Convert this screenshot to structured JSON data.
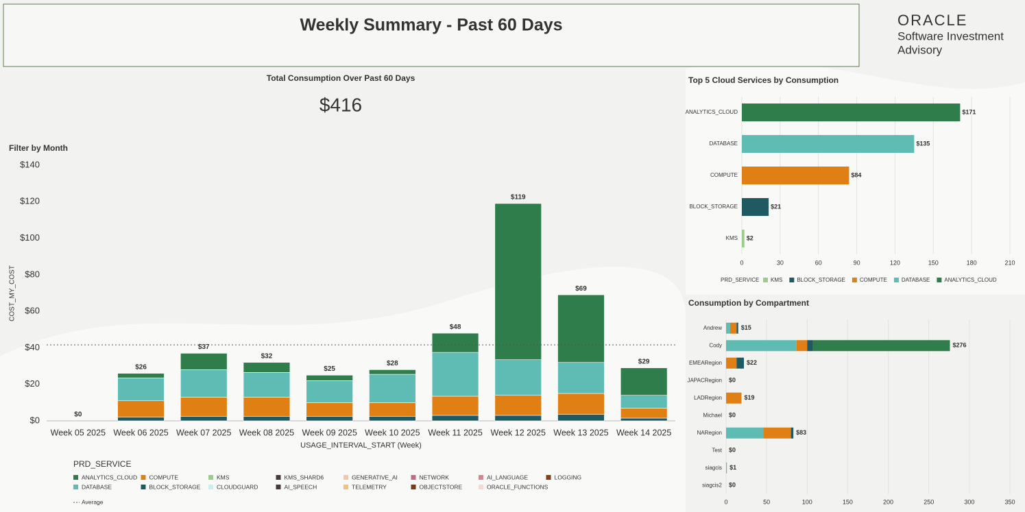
{
  "header": {
    "title": "Weekly Summary - Past 60 Days",
    "logo": {
      "brand": "ORACLE",
      "line1": "Software Investment",
      "line2": "Advisory"
    }
  },
  "kpi": {
    "label": "Total Consumption Over Past 60 Days",
    "value": 416,
    "value_label": "$416"
  },
  "filter": {
    "label": "Filter by Month"
  },
  "chart_data": [
    {
      "type": "stacked-bar",
      "categories": [
        "Week 05 2025",
        "Week 06 2025",
        "Week 07 2025",
        "Week 08 2025",
        "Week 09 2025",
        "Week 10 2025",
        "Week 11 2025",
        "Week 12 2025",
        "Week 13 2025",
        "Week 14 2025"
      ],
      "xlabel": "USAGE_INTERVAL_START (Week)",
      "ylabel": "COST_MY_COST",
      "ylim": [
        0,
        140
      ],
      "yticks": [
        {
          "value": 0,
          "label": "$0"
        },
        {
          "value": 20,
          "label": "$20"
        },
        {
          "value": 40,
          "label": "$40"
        },
        {
          "value": 60,
          "label": "$60"
        },
        {
          "value": 80,
          "label": "$80"
        },
        {
          "value": 100,
          "label": "$100"
        },
        {
          "value": 120,
          "label": "$120"
        },
        {
          "value": 140,
          "label": "$140"
        }
      ],
      "grid": false,
      "legend_title": "PRD_SERVICE",
      "series": [
        {
          "name": "BLOCK_STORAGE",
          "color": "#1f5a63",
          "values": [
            0,
            2,
            2.5,
            2.5,
            2.5,
            2.5,
            3,
            3,
            3.5,
            1.5
          ]
        },
        {
          "name": "COMPUTE",
          "color": "#e07f14",
          "values": [
            0,
            9,
            10.5,
            10.5,
            7.5,
            7.5,
            10.5,
            11,
            11.5,
            5.5
          ]
        },
        {
          "name": "KMS",
          "color": "#9ccc8c",
          "values": [
            0,
            0,
            0,
            0,
            0,
            0,
            0,
            0,
            0,
            0
          ]
        },
        {
          "name": "DATABASE",
          "color": "#5fbcb4",
          "values": [
            0,
            12.5,
            15,
            13.5,
            12,
            15.5,
            24,
            19.5,
            17,
            7
          ]
        },
        {
          "name": "ANALYTICS_CLOUD",
          "color": "#2e7d4a",
          "values": [
            0,
            2.5,
            9,
            5.5,
            3,
            2.5,
            10.5,
            85.5,
            37,
            15
          ]
        },
        {
          "name": "KMS_SHARD6",
          "color": "#4a3a3a",
          "values": [
            0,
            0,
            0,
            0,
            0,
            0,
            0,
            0,
            0,
            0
          ]
        },
        {
          "name": "GENERATIVE_AI",
          "color": "#f5c8a8",
          "values": [
            0,
            0,
            0,
            0,
            0,
            0,
            0,
            0,
            0,
            0
          ]
        },
        {
          "name": "NETWORK",
          "color": "#c06c84",
          "values": [
            0,
            0,
            0,
            0,
            0,
            0,
            0,
            0,
            0,
            0
          ]
        },
        {
          "name": "AI_LANGUAGE",
          "color": "#d4878f",
          "values": [
            0,
            0,
            0,
            0,
            0,
            0,
            0,
            0,
            0,
            0
          ]
        },
        {
          "name": "LOGGING",
          "color": "#8b3a1a",
          "values": [
            0,
            0,
            0,
            0,
            0,
            0,
            0,
            0,
            0,
            0
          ]
        },
        {
          "name": "CLOUDGUARD",
          "color": "#c8eef0",
          "values": [
            0,
            0,
            0,
            0,
            0,
            0,
            0,
            0,
            0,
            0
          ]
        },
        {
          "name": "AI_SPEECH",
          "color": "#4a3840",
          "values": [
            0,
            0,
            0,
            0,
            0,
            0,
            0,
            0,
            0,
            0
          ]
        },
        {
          "name": "TELEMETRY",
          "color": "#f5c07a",
          "values": [
            0,
            0,
            0,
            0,
            0,
            0,
            0,
            0,
            0,
            0
          ]
        },
        {
          "name": "OBJECTSTORE",
          "color": "#7a3a14",
          "values": [
            0,
            0,
            0,
            0,
            0,
            0,
            0,
            0,
            0,
            0
          ]
        },
        {
          "name": "ORACLE_FUNCTIONS",
          "color": "#f5d8d0",
          "values": [
            0,
            0,
            0,
            0,
            0,
            0,
            0,
            0,
            0,
            0
          ]
        }
      ],
      "totals": {
        "values": [
          0,
          26,
          37,
          32,
          25,
          28,
          48,
          119,
          69,
          29
        ],
        "value_labels": [
          "$0",
          "$26",
          "$37",
          "$32",
          "$25",
          "$28",
          "$48",
          "$119",
          "$69",
          "$29"
        ]
      },
      "average": 41.6,
      "average_label": "Average"
    },
    {
      "type": "hbar",
      "title": "Top 5 Cloud Services by Consumption",
      "categories": [
        "ANALYTICS_CLOUD",
        "DATABASE",
        "COMPUTE",
        "BLOCK_STORAGE",
        "KMS"
      ],
      "values": [
        171,
        135,
        84,
        21,
        2
      ],
      "value_labels": [
        "$171",
        "$135",
        "$84",
        "$21",
        "$2"
      ],
      "colors": [
        "#2e7d4a",
        "#5fbcb4",
        "#e07f14",
        "#1f5a63",
        "#9ccc8c"
      ],
      "xlim": [
        0,
        210
      ],
      "xticks": [
        0,
        30,
        60,
        90,
        120,
        150,
        180,
        210
      ],
      "grid": true,
      "legend_title": "PRD_SERVICE"
    },
    {
      "type": "stacked-hbar",
      "title": "Consumption by Compartment",
      "categories": [
        "Andrew",
        "Cody",
        "EMEARegion",
        "JAPACRegion",
        "LADRegion",
        "Michael",
        "NARegion",
        "Test",
        "siagcis",
        "siagcis2"
      ],
      "xlim": [
        0,
        350
      ],
      "xticks": [
        0,
        50,
        100,
        150,
        200,
        250,
        300,
        350
      ],
      "grid": true,
      "series": [
        {
          "color": "#5fbcb4",
          "values": [
            5,
            87,
            0,
            0,
            0,
            0,
            46,
            0,
            1,
            0
          ]
        },
        {
          "color": "#e07f14",
          "values": [
            8,
            13,
            13,
            0,
            19,
            0,
            34,
            0,
            0,
            0
          ]
        },
        {
          "color": "#1f5a63",
          "values": [
            2,
            7,
            9,
            0,
            0,
            0,
            3,
            0,
            0,
            0
          ]
        },
        {
          "color": "#2e7d4a",
          "values": [
            0,
            169,
            0,
            0,
            0,
            0,
            0,
            0,
            0,
            0
          ]
        }
      ],
      "totals": {
        "values": [
          15,
          276,
          22,
          0,
          19,
          0,
          83,
          0,
          1,
          0
        ],
        "value_labels": [
          "$15",
          "$276",
          "$22",
          "$0",
          "$19",
          "$0",
          "$83",
          "$0",
          "$1",
          "$0"
        ]
      }
    }
  ]
}
